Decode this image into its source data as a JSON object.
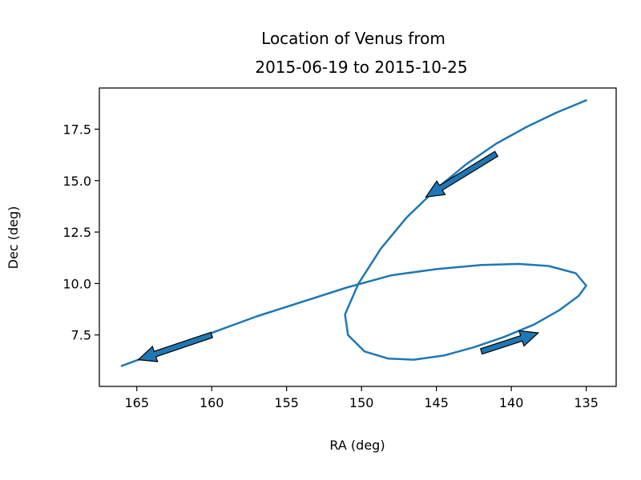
{
  "chart_data": {
    "type": "line",
    "title_line1": "Location of Venus from",
    "title_line2": "2015-06-19 to 2015-10-25",
    "xlabel": "RA (deg)",
    "ylabel": "Dec (deg)",
    "xlim": [
      167.5,
      133.0
    ],
    "ylim": [
      5.0,
      19.5
    ],
    "x_inverted": true,
    "grid": false,
    "xticks": [
      165,
      160,
      155,
      150,
      145,
      140,
      135
    ],
    "xtick_labels": [
      "165",
      "160",
      "155",
      "150",
      "145",
      "140",
      "135"
    ],
    "yticks": [
      7.5,
      10.0,
      12.5,
      15.0,
      17.5
    ],
    "ytick_labels": [
      "7.5",
      "10.0",
      "12.5",
      "15.0",
      "17.5"
    ],
    "series": [
      {
        "color": "#1f77b4",
        "points": [
          [
            135.0,
            18.9
          ],
          [
            137.0,
            18.3
          ],
          [
            139.0,
            17.6
          ],
          [
            141.0,
            16.8
          ],
          [
            143.0,
            15.8
          ],
          [
            145.0,
            14.6
          ],
          [
            147.0,
            13.2
          ],
          [
            148.7,
            11.7
          ],
          [
            150.2,
            10.0
          ],
          [
            151.1,
            8.5
          ],
          [
            150.9,
            7.5
          ],
          [
            149.8,
            6.7
          ],
          [
            148.2,
            6.35
          ],
          [
            146.5,
            6.3
          ],
          [
            144.5,
            6.5
          ],
          [
            142.5,
            6.9
          ],
          [
            140.5,
            7.4
          ],
          [
            138.5,
            8.0
          ],
          [
            136.8,
            8.7
          ],
          [
            135.5,
            9.4
          ],
          [
            135.0,
            9.9
          ],
          [
            135.7,
            10.5
          ],
          [
            137.5,
            10.85
          ],
          [
            139.5,
            10.95
          ],
          [
            142.0,
            10.9
          ],
          [
            145.0,
            10.7
          ],
          [
            148.0,
            10.4
          ],
          [
            151.0,
            9.8
          ],
          [
            154.0,
            9.1
          ],
          [
            157.0,
            8.4
          ],
          [
            160.0,
            7.6
          ],
          [
            163.0,
            6.8
          ],
          [
            166.0,
            6.0
          ]
        ]
      }
    ],
    "arrows": [
      {
        "from": [
          141.0,
          16.3
        ],
        "to": [
          145.7,
          14.2
        ]
      },
      {
        "from": [
          142.0,
          6.7
        ],
        "to": [
          138.2,
          7.6
        ]
      },
      {
        "from": [
          160.0,
          7.5
        ],
        "to": [
          164.9,
          6.3
        ]
      }
    ],
    "arrow_color": "#1f77b4",
    "arrow_edge_color": "#000000"
  }
}
